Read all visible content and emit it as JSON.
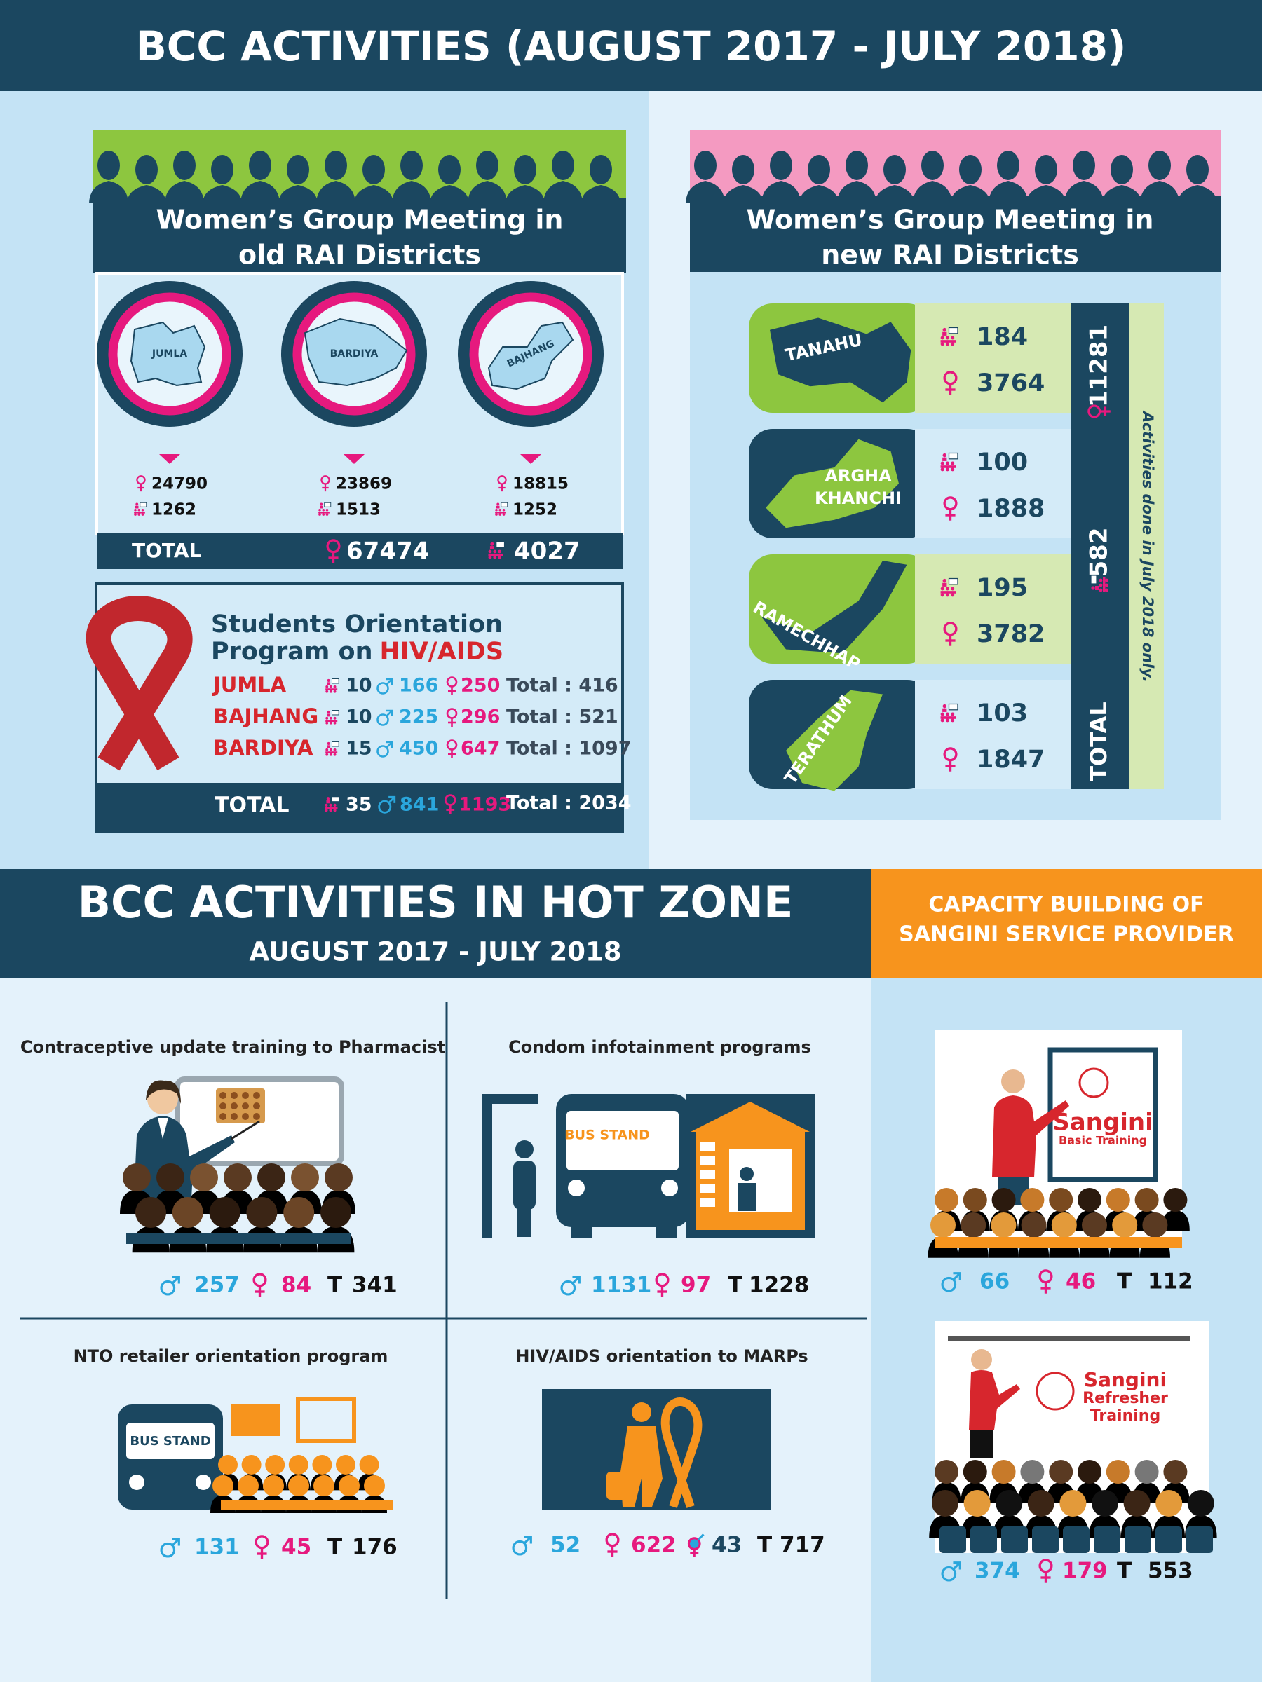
{
  "header": {
    "title": "BCC ACTIVITIES (AUGUST 2017 - JULY 2018)"
  },
  "old_rai": {
    "title": [
      "Women’s Group Meeting in",
      "old RAI Districts"
    ],
    "districts": [
      {
        "name": "JUMLA",
        "female": 24790,
        "groups": 1262
      },
      {
        "name": "BARDIYA",
        "female": 23869,
        "groups": 1513
      },
      {
        "name": "BAJHANG",
        "female": 18815,
        "groups": 1252
      }
    ],
    "total": {
      "label": "TOTAL",
      "female": 67474,
      "groups": 4027
    }
  },
  "students": {
    "title": "Students Orientation",
    "title2_prefix": "Program on",
    "title2_highlight": "HIV/AIDS",
    "rows": [
      {
        "district": "JUMLA",
        "schools": 10,
        "male": 166,
        "female": 250,
        "total": "Total : 416"
      },
      {
        "district": "BAJHANG",
        "schools": 10,
        "male": 225,
        "female": 296,
        "total": "Total : 521"
      },
      {
        "district": "BARDIYA",
        "schools": 15,
        "male": 450,
        "female": 647,
        "total": "Total : 1097"
      }
    ],
    "total": {
      "label": "TOTAL",
      "schools": 35,
      "male": 841,
      "female": 1193,
      "total": "Total : 2034"
    }
  },
  "new_rai": {
    "title": [
      "Women’s Group Meeting in",
      "new RAI Districts"
    ],
    "districts": [
      {
        "name": [
          "TANAHU"
        ],
        "groups": 184,
        "female": 3764
      },
      {
        "name": [
          "ARGHA",
          "KHANCHI"
        ],
        "groups": 100,
        "female": 1888
      },
      {
        "name": [
          "RAMECHHAP"
        ],
        "groups": 195,
        "female": 3782
      },
      {
        "name": [
          "TERATHUM"
        ],
        "groups": 103,
        "female": 1847
      }
    ],
    "total_female": 11281,
    "total_groups": 582,
    "total_label": "TOTAL",
    "note": "Activities done in July 2018 only."
  },
  "hot_zone": {
    "title": "BCC ACTIVITIES IN HOT ZONE",
    "subtitle": "AUGUST 2017 - JULY 2018",
    "programs": [
      {
        "title": "Contraceptive update training to Pharmacist",
        "male": 257,
        "female": 84,
        "total_label": "T",
        "total": 341
      },
      {
        "title": "Condom infotainment programs",
        "sign": "BUS STAND",
        "male": 1131,
        "female": 97,
        "total_label": "T",
        "total": 1228
      },
      {
        "title": "NTO retailer orientation program",
        "sign": "BUS STAND",
        "male": 131,
        "female": 45,
        "total_label": "T",
        "total": 176
      },
      {
        "title": "HIV/AIDS orientation to MARPs",
        "male": 52,
        "female": 622,
        "transgender": 43,
        "total_label": "T",
        "total": 717
      }
    ]
  },
  "capacity": {
    "title": [
      "CAPACITY BUILDING OF",
      "SANGINI SERVICE PROVIDER"
    ],
    "trainings": [
      {
        "sign": [
          "Sangini",
          "Basic Training"
        ],
        "male": 66,
        "female": 46,
        "total_label": "T",
        "total": 112
      },
      {
        "sign": [
          "Sangini",
          "Refresher",
          "Training"
        ],
        "male": 374,
        "female": 179,
        "total_label": "T",
        "total": 553
      }
    ]
  }
}
